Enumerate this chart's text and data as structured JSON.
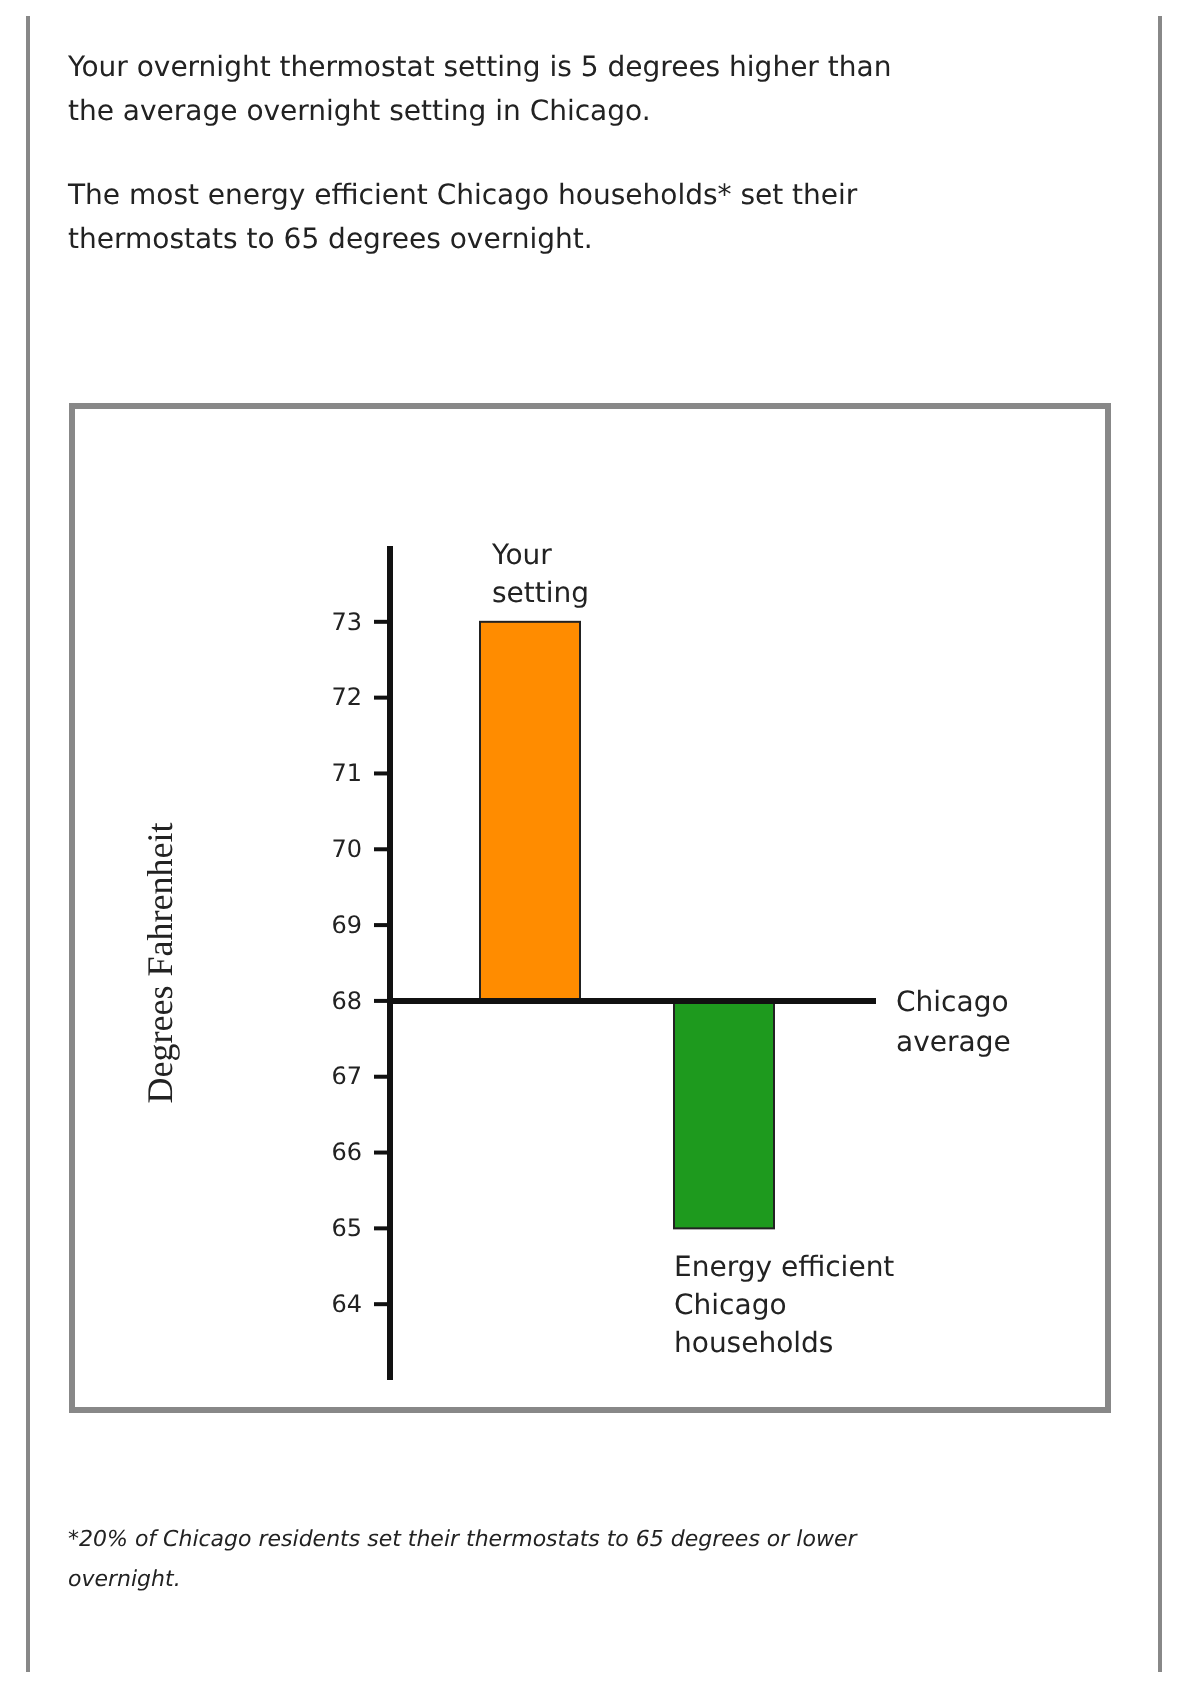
{
  "chart_data": {
    "type": "bar",
    "title": "Your overnight thermostat setting is 5 degrees higher than the average overnight setting in Chicago.",
    "subtitle": "The most energy efficient Chicago households* set their thermostats to 65 degrees overnight.",
    "ylabel": "Degrees Fahrenheit",
    "categories": [
      "Your setting",
      "Energy efficient Chicago households"
    ],
    "values": [
      5,
      -3
    ],
    "base": [
      68,
      68
    ],
    "colors": [
      "#ff8c00",
      "#1e9a1e"
    ],
    "ylim": [
      63,
      74
    ],
    "yticks": [
      64,
      65,
      66,
      67,
      68,
      69,
      70,
      71,
      72,
      73
    ],
    "ref_lines": [
      {
        "axis": "y",
        "value": 68,
        "label": "Chicago average"
      }
    ],
    "annotations": [
      "*20% of Chicago residents set their thermostats to 65 degrees or lower overnight."
    ]
  }
}
